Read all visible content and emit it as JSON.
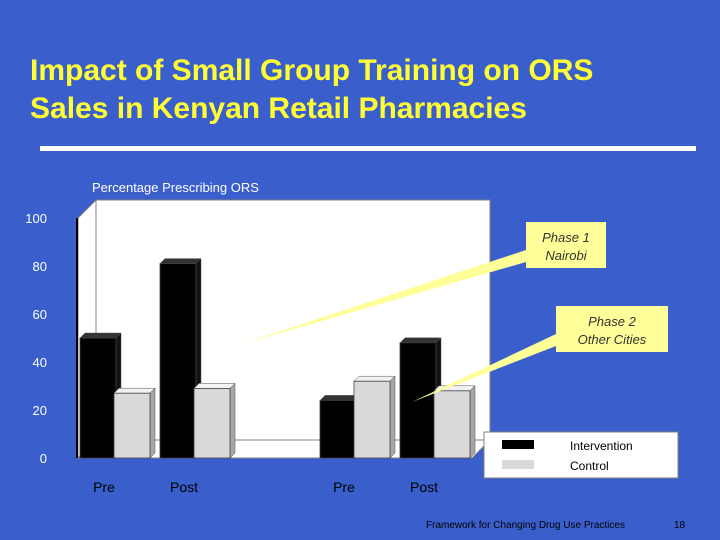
{
  "slide": {
    "title_line1": "Impact of Small Group Training on ORS",
    "title_line2": "Sales in Kenyan Retail Pharmacies",
    "footer": "Framework for Changing Drug Use Practices",
    "page_number": "18"
  },
  "colors": {
    "background": "#3a5fcd",
    "title": "#ffff33",
    "intervention": "#000000",
    "control": "#d9d9d9",
    "callout": "#ffff99"
  },
  "chart_data": {
    "type": "bar",
    "title": "Percentage Prescribing ORS",
    "xlabel": "",
    "ylabel": "",
    "ylim": [
      0,
      100
    ],
    "yticks": [
      0,
      20,
      40,
      60,
      80,
      100
    ],
    "categories": [
      "Pre",
      "Post",
      "Pre",
      "Post"
    ],
    "series": [
      {
        "name": "Intervention",
        "values": [
          50,
          81,
          24,
          48
        ]
      },
      {
        "name": "Control",
        "values": [
          27,
          29,
          32,
          28
        ]
      }
    ],
    "grid": false,
    "legend_position": "bottom-right",
    "annotations": [
      {
        "line1": "Phase 1",
        "line2": "Nairobi"
      },
      {
        "line1": "Phase 2",
        "line2": "Other Cities"
      }
    ]
  }
}
